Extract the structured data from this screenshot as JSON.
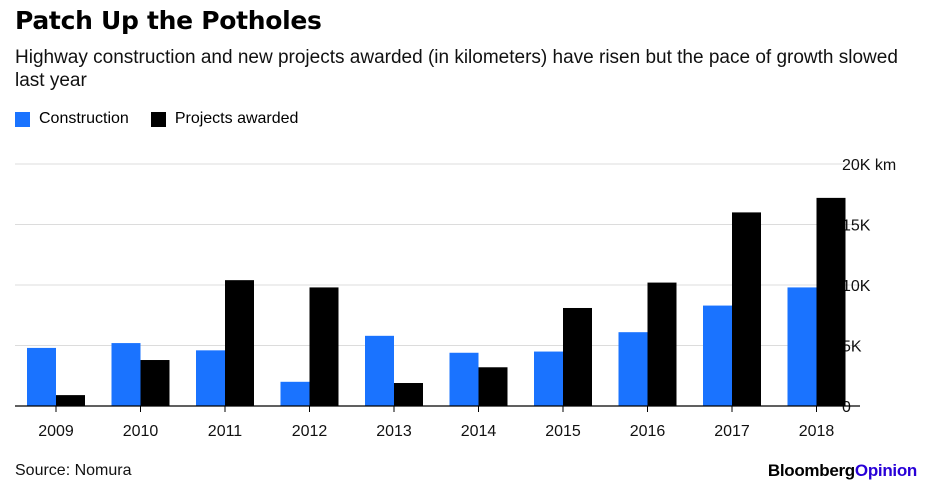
{
  "title": "Patch Up the Potholes",
  "subtitle": "Highway construction and new projects awarded (in kilometers) have risen but the pace of growth slowed last year",
  "footer": {
    "source": "Source: Nomura",
    "brand": "Bloomberg",
    "brand_accent": "Opinion",
    "brand_accent_color": "#2800d7"
  },
  "chart_data": {
    "type": "bar",
    "categories": [
      "2009",
      "2010",
      "2011",
      "2012",
      "2013",
      "2014",
      "2015",
      "2016",
      "2017",
      "2018"
    ],
    "series": [
      {
        "name": "Construction",
        "color": "#1a73ff",
        "values": [
          4800,
          5200,
          4600,
          2000,
          5800,
          4400,
          4500,
          6100,
          8300,
          9800
        ]
      },
      {
        "name": "Projects awarded",
        "color": "#000000",
        "values": [
          900,
          3800,
          10400,
          9800,
          1900,
          3200,
          8100,
          10200,
          16000,
          17200
        ]
      }
    ],
    "ylim": [
      0,
      20000
    ],
    "yticks": [
      0,
      5000,
      10000,
      15000,
      20000
    ],
    "ytick_labels": [
      "0",
      "5K",
      "10K",
      "15K",
      "20K km"
    ],
    "grid": true,
    "legend_position": "top-left"
  }
}
